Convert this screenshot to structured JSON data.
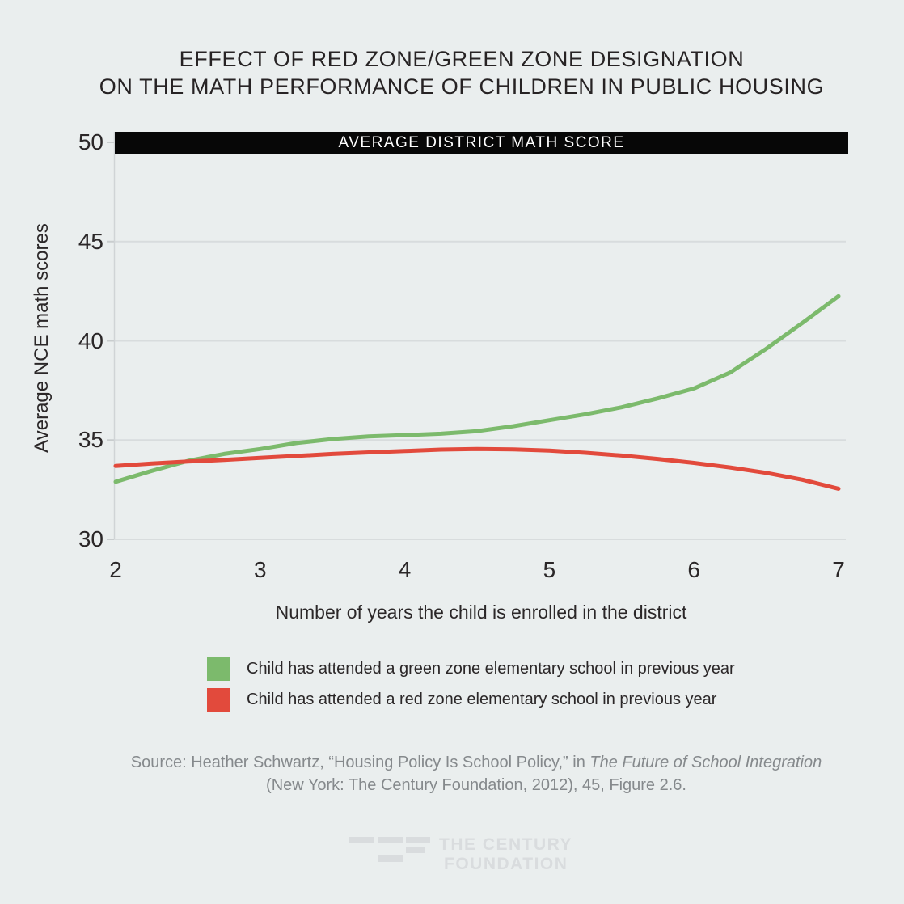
{
  "page": {
    "background": "#eaeeee"
  },
  "title": {
    "line1": "EFFECT OF RED ZONE/GREEN ZONE DESIGNATION",
    "line2": "ON THE MATH PERFORMANCE OF CHILDREN IN PUBLIC HOUSING"
  },
  "banner": {
    "label": "AVERAGE DISTRICT MATH SCORE",
    "bg": "#070707",
    "text_color": "#ffffff"
  },
  "chart_data": {
    "type": "line",
    "title": "Effect of red zone/green zone designation on the math performance of children in public housing",
    "xlabel": "Number of years the child is enrolled in the district",
    "ylabel": "Average NCE math scores",
    "xlim": [
      2,
      7
    ],
    "ylim": [
      30,
      50
    ],
    "x_ticks": [
      2,
      3,
      4,
      5,
      6,
      7
    ],
    "y_ticks": [
      50,
      45,
      40,
      35,
      30
    ],
    "grid": true,
    "grid_color": "#d8dcdd",
    "axis_color": "#d0d4d6",
    "tick_color": "#c9cdce",
    "annotation": "Black bar at y = 50 labeled AVERAGE DISTRICT MATH SCORE (average district math score reference level)",
    "x": [
      2,
      2.25,
      2.5,
      2.75,
      3,
      3.25,
      3.5,
      3.75,
      4,
      4.25,
      4.5,
      4.75,
      5,
      5.25,
      5.5,
      5.75,
      6,
      6.25,
      6.5,
      6.75,
      7
    ],
    "series": [
      {
        "name": "Child has attended a green zone elementary school in previous year",
        "color": "#7cba6c",
        "values": [
          32.9,
          33.45,
          33.95,
          34.3,
          34.55,
          34.85,
          35.05,
          35.18,
          35.25,
          35.32,
          35.45,
          35.7,
          36.0,
          36.3,
          36.65,
          37.1,
          37.6,
          38.4,
          39.6,
          40.9,
          42.25
        ]
      },
      {
        "name": "Child has attended a red zone elementary school in previous year",
        "color": "#e24a3c",
        "values": [
          33.7,
          33.82,
          33.92,
          34.0,
          34.1,
          34.2,
          34.3,
          34.38,
          34.45,
          34.52,
          34.55,
          34.53,
          34.47,
          34.36,
          34.22,
          34.05,
          33.85,
          33.62,
          33.35,
          33.0,
          32.55
        ]
      }
    ],
    "legend_position": "bottom"
  },
  "legend": {
    "items": [
      {
        "label": "Child has attended a green zone elementary school in previous year",
        "color": "#7cba6c"
      },
      {
        "label": "Child has attended a red zone elementary school in previous year",
        "color": "#e24a3c"
      }
    ]
  },
  "source": {
    "line1_prefix": "Source: Heather Schwartz, “Housing Policy Is School Policy,” in ",
    "line1_italic": "The Future of School Integration",
    "line2": "(New York: The Century Foundation, 2012), 45, Figure 2.6."
  },
  "logo": {
    "line1": "THE CENTURY",
    "line2": "FOUNDATION",
    "color": "#d9dcde"
  }
}
